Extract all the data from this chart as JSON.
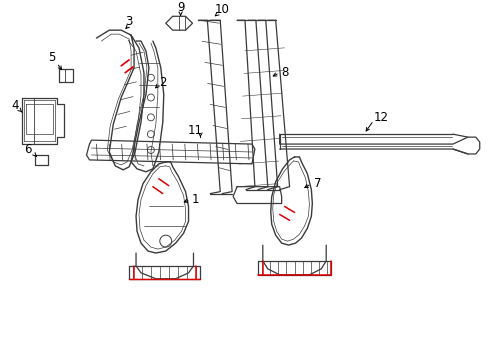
{
  "background_color": "#ffffff",
  "line_color": "#3a3a3a",
  "red_color": "#e00000",
  "label_color": "#000000",
  "figsize": [
    4.89,
    3.6
  ],
  "dpi": 100
}
